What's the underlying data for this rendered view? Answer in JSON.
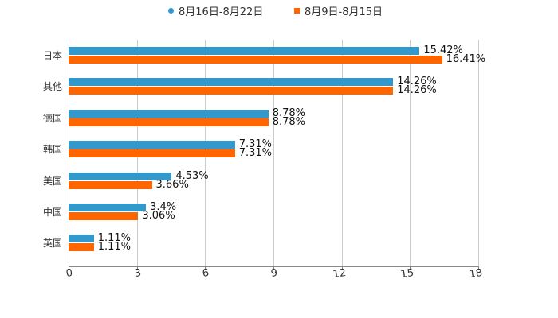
{
  "legend": {
    "items": [
      {
        "label": "8月16日-8月22日",
        "color": "#3399cc",
        "marker": "circle"
      },
      {
        "label": "8月9日-8月15日",
        "color": "#ff6600",
        "marker": "square"
      }
    ]
  },
  "chart_data": {
    "type": "bar",
    "orientation": "horizontal",
    "title": "",
    "xlabel": "",
    "ylabel": "",
    "categories": [
      "日本",
      "其他",
      "德国",
      "韩国",
      "美国",
      "中国",
      "英国"
    ],
    "series": [
      {
        "name": "8月16日-8月22日",
        "color": "#3399cc",
        "values": [
          15.42,
          14.26,
          8.78,
          7.31,
          4.53,
          3.4,
          1.11
        ],
        "labels": [
          "15.42%",
          "14.26%",
          "8.78%",
          "7.31%",
          "4.53%",
          "3.4%",
          "1.11%"
        ]
      },
      {
        "name": "8月9日-8月15日",
        "color": "#ff6600",
        "values": [
          16.41,
          14.26,
          8.78,
          7.31,
          3.66,
          3.06,
          1.11
        ],
        "labels": [
          "16.41%",
          "14.26%",
          "8.78%",
          "7.31%",
          "3.66%",
          "3.06%",
          "1.11%"
        ]
      }
    ],
    "xlim": [
      0,
      18
    ],
    "xticks": [
      "0",
      "3",
      "6",
      "9",
      "12",
      "15",
      "18"
    ],
    "grid": true,
    "legend_position": "top"
  }
}
